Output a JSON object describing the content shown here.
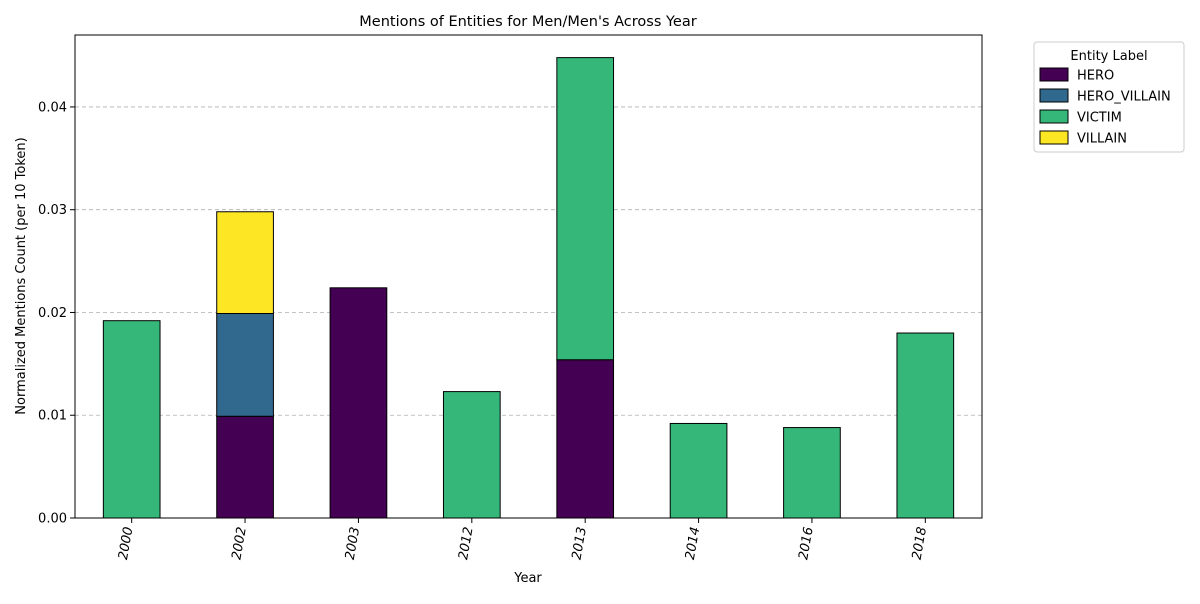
{
  "chart_data": {
    "type": "bar",
    "stacked": true,
    "title": "Mentions of Entities for Men/Men's Across Year",
    "xlabel": "Year",
    "ylabel": "Normalized Mentions Count (per 10 Token)",
    "categories": [
      "2000",
      "2002",
      "2003",
      "2012",
      "2013",
      "2014",
      "2016",
      "2018"
    ],
    "ylim": [
      0,
      0.047
    ],
    "yticks": [
      0.0,
      0.01,
      0.02,
      0.03,
      0.04
    ],
    "ytick_labels": [
      "0.00",
      "0.01",
      "0.02",
      "0.03",
      "0.04"
    ],
    "grid": "y-dashed",
    "legend": {
      "title": "Entity Label",
      "placement": "outside-right"
    },
    "series": [
      {
        "name": "HERO",
        "color": "#440154",
        "values": [
          0,
          0.0099,
          0.0224,
          0,
          0.0154,
          0,
          0,
          0
        ]
      },
      {
        "name": "HERO_VILLAIN",
        "color": "#31688e",
        "values": [
          0,
          0.01,
          0,
          0,
          0,
          0,
          0,
          0
        ]
      },
      {
        "name": "VICTIM",
        "color": "#35b779",
        "values": [
          0.0192,
          0,
          0,
          0.0123,
          0.0294,
          0.0092,
          0.0088,
          0.018
        ]
      },
      {
        "name": "VILLAIN",
        "color": "#fde725",
        "values": [
          0,
          0.0099,
          0,
          0,
          0,
          0,
          0,
          0
        ]
      }
    ]
  }
}
